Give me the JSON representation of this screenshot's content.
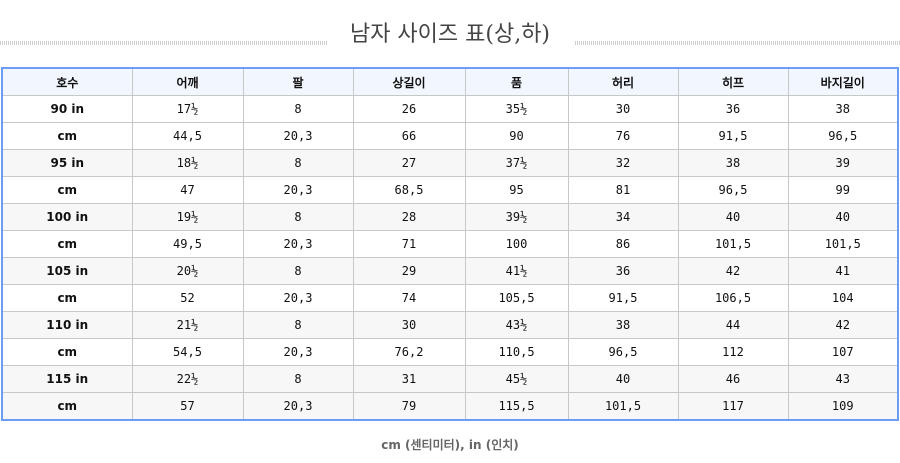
{
  "title": "남자 사이즈 표(상,하)",
  "table": {
    "headers": [
      "호수",
      "어깨",
      "팔",
      "상길이",
      "품",
      "허리",
      "히프",
      "바지길이"
    ],
    "rows": [
      [
        "90 in",
        "17½",
        "8",
        "26",
        "35½",
        "30",
        "36",
        "38"
      ],
      [
        "cm",
        "44,5",
        "20,3",
        "66",
        "90",
        "76",
        "91,5",
        "96,5"
      ],
      [
        "95 in",
        "18½",
        "8",
        "27",
        "37½",
        "32",
        "38",
        "39"
      ],
      [
        "cm",
        "47",
        "20,3",
        "68,5",
        "95",
        "81",
        "96,5",
        "99"
      ],
      [
        "100 in",
        "19½",
        "8",
        "28",
        "39½",
        "34",
        "40",
        "40"
      ],
      [
        "cm",
        "49,5",
        "20,3",
        "71",
        "100",
        "86",
        "101,5",
        "101,5"
      ],
      [
        "105 in",
        "20½",
        "8",
        "29",
        "41½",
        "36",
        "42",
        "41"
      ],
      [
        "cm",
        "52",
        "20,3",
        "74",
        "105,5",
        "91,5",
        "106,5",
        "104"
      ],
      [
        "110 in",
        "21½",
        "8",
        "30",
        "43½",
        "38",
        "44",
        "42"
      ],
      [
        "cm",
        "54,5",
        "20,3",
        "76,2",
        "110,5",
        "96,5",
        "112",
        "107"
      ],
      [
        "115 in",
        "22½",
        "8",
        "31",
        "45½",
        "40",
        "46",
        "43"
      ],
      [
        "cm",
        "57",
        "20,3",
        "79",
        "115,5",
        "101,5",
        "117",
        "109"
      ]
    ]
  },
  "footer": "cm (센티미터), in (인치)",
  "colors": {
    "border": "#6c9cf4",
    "header_bg": "#f2f6fe",
    "alt_row_bg": "#f7f7f7"
  }
}
